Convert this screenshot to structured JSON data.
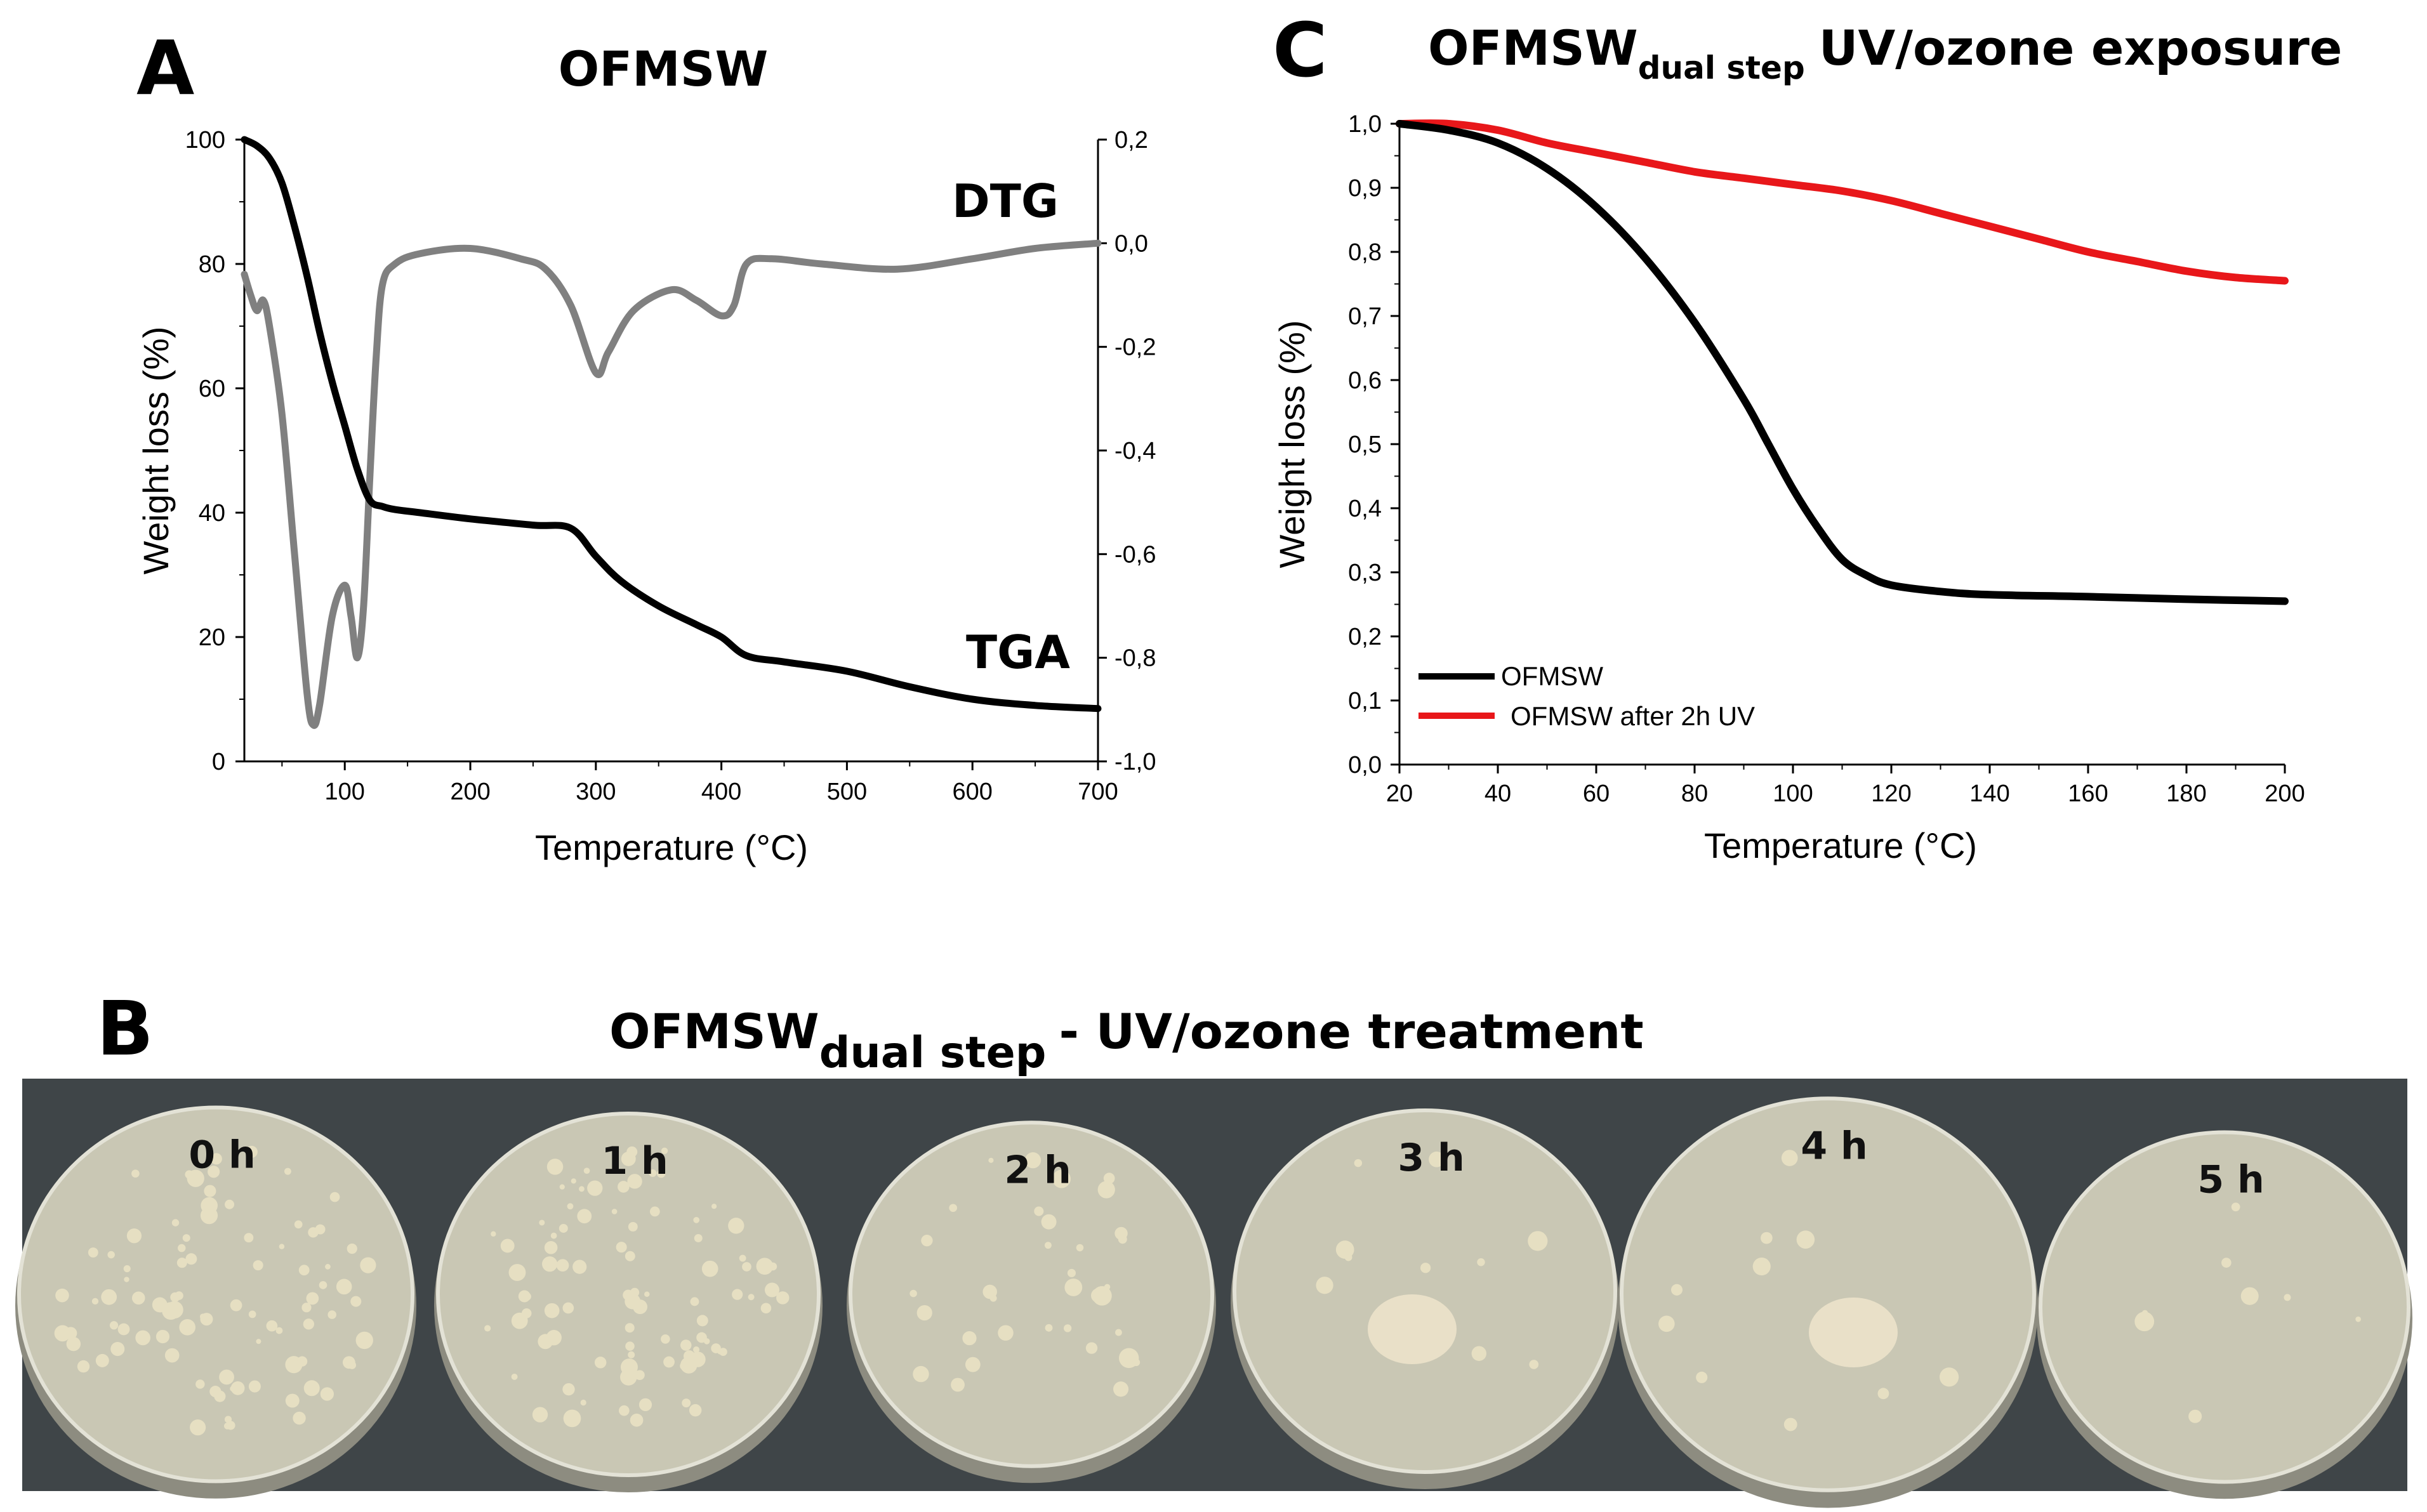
{
  "panel_a": {
    "letter": "A",
    "title": "OFMSW"
  },
  "panel_b": {
    "letter": "B",
    "title_main": "OFMSW",
    "title_sub": "dual step",
    "title_rest": "- UV/ozone treatment",
    "plates": [
      {
        "label": "0 h",
        "growth": "dense"
      },
      {
        "label": "1 h",
        "growth": "dense"
      },
      {
        "label": "2 h",
        "growth": "moderate"
      },
      {
        "label": "3 h",
        "growth": "sparse"
      },
      {
        "label": "4 h",
        "growth": "sparse"
      },
      {
        "label": "5 h",
        "growth": "minimal"
      }
    ]
  },
  "panel_c": {
    "letter": "C",
    "title_main": "OFMSW",
    "title_sub": "dual step",
    "title_rest": "UV/ozone exposure"
  },
  "colors": {
    "tga": "#000000",
    "dtg": "#808080",
    "ofmsw": "#000000",
    "ofmsw_uv": "#e8171a",
    "photo_bg": "#3f4548",
    "plate": "#c9c7b4"
  },
  "chart_data": [
    {
      "id": "A",
      "type": "line",
      "title": "OFMSW",
      "xlabel": "Temperature (°C)",
      "ylabel": "Weight loss (%)",
      "y2label": "",
      "xlim": [
        20,
        700
      ],
      "ylim": [
        0,
        100
      ],
      "y2lim": [
        -1.0,
        0.2
      ],
      "x_ticks": [
        "100",
        "200",
        "300",
        "400",
        "500",
        "600",
        "700"
      ],
      "y_ticks": [
        "0",
        "20",
        "40",
        "60",
        "80",
        "100"
      ],
      "y2_ticks": [
        "-1,0",
        "-0,8",
        "-0,6",
        "-0,4",
        "-0,2",
        "0,0",
        "0,2"
      ],
      "series": [
        {
          "name": "TGA",
          "axis": "left",
          "color": "#000000",
          "x": [
            20,
            30,
            40,
            50,
            60,
            70,
            80,
            90,
            100,
            110,
            120,
            130,
            140,
            160,
            200,
            250,
            280,
            300,
            320,
            350,
            380,
            400,
            420,
            450,
            500,
            550,
            600,
            650,
            700
          ],
          "y": [
            100,
            99,
            97,
            93,
            86,
            78,
            69,
            61,
            54,
            47,
            42,
            41,
            40.5,
            40,
            39,
            38,
            37.5,
            33,
            29,
            25,
            22,
            20,
            17,
            16,
            14.5,
            12,
            10,
            9,
            8.5
          ]
        },
        {
          "name": "DTG",
          "axis": "right",
          "color": "#808080",
          "x": [
            20,
            25,
            30,
            35,
            40,
            50,
            60,
            70,
            75,
            80,
            90,
            100,
            105,
            110,
            115,
            120,
            125,
            130,
            140,
            160,
            200,
            240,
            260,
            280,
            300,
            310,
            330,
            360,
            380,
            400,
            410,
            420,
            440,
            480,
            540,
            600,
            650,
            700
          ],
          "y": [
            -0.06,
            -0.1,
            -0.13,
            -0.11,
            -0.16,
            -0.33,
            -0.6,
            -0.87,
            -0.93,
            -0.89,
            -0.72,
            -0.66,
            -0.72,
            -0.8,
            -0.7,
            -0.45,
            -0.22,
            -0.08,
            -0.04,
            -0.02,
            -0.01,
            -0.03,
            -0.05,
            -0.12,
            -0.25,
            -0.21,
            -0.13,
            -0.09,
            -0.11,
            -0.14,
            -0.12,
            -0.04,
            -0.03,
            -0.04,
            -0.05,
            -0.03,
            -0.01,
            0.0
          ]
        }
      ],
      "annotations": [
        {
          "text": "DTG",
          "series": "DTG"
        },
        {
          "text": "TGA",
          "series": "TGA"
        }
      ]
    },
    {
      "id": "C",
      "type": "line",
      "title": "OFMSW dual step UV/ozone exposure",
      "xlabel": "Temperature (°C)",
      "ylabel": "Weight loss (%)",
      "xlim": [
        20,
        200
      ],
      "ylim": [
        0,
        1.0
      ],
      "x_ticks": [
        "20",
        "40",
        "60",
        "80",
        "100",
        "120",
        "140",
        "160",
        "180",
        "200"
      ],
      "y_ticks": [
        "0,0",
        "0,1",
        "0,2",
        "0,3",
        "0,4",
        "0,5",
        "0,6",
        "0,7",
        "0,8",
        "0,9",
        "1,0"
      ],
      "legend_position": "bottom-left",
      "series": [
        {
          "name": "OFMSW",
          "color": "#000000",
          "x": [
            20,
            30,
            40,
            50,
            60,
            70,
            80,
            90,
            95,
            100,
            105,
            110,
            115,
            120,
            130,
            140,
            160,
            180,
            200
          ],
          "y": [
            1.0,
            0.99,
            0.97,
            0.93,
            0.87,
            0.79,
            0.69,
            0.57,
            0.5,
            0.43,
            0.37,
            0.32,
            0.295,
            0.28,
            0.27,
            0.265,
            0.262,
            0.258,
            0.255
          ]
        },
        {
          "name": "OFMSW after 2h UV",
          "color": "#e8171a",
          "x": [
            20,
            30,
            40,
            50,
            60,
            70,
            80,
            90,
            100,
            110,
            120,
            130,
            140,
            150,
            160,
            170,
            180,
            190,
            200
          ],
          "y": [
            1.0,
            1.0,
            0.99,
            0.97,
            0.955,
            0.94,
            0.925,
            0.915,
            0.905,
            0.895,
            0.88,
            0.86,
            0.84,
            0.82,
            0.8,
            0.785,
            0.77,
            0.76,
            0.755
          ]
        }
      ]
    }
  ]
}
